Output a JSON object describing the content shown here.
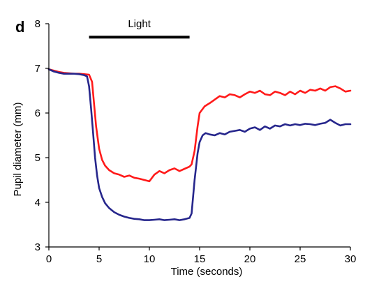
{
  "panel_label": "d",
  "chart_data": {
    "type": "line",
    "title": "",
    "xlabel": "Time (seconds)",
    "ylabel": "Pupil diameter (mm)",
    "xlim": [
      0,
      30
    ],
    "ylim": [
      3,
      8
    ],
    "xticks": [
      0,
      5,
      10,
      15,
      20,
      25,
      30
    ],
    "yticks": [
      3,
      4,
      5,
      6,
      7,
      8
    ],
    "grid": false,
    "annotations": [
      {
        "type": "bar",
        "label": "Light",
        "x_start": 4,
        "x_end": 14,
        "y": 7.7
      }
    ],
    "series": [
      {
        "name": "red",
        "color": "#ff1a1a",
        "x": [
          0,
          0.5,
          1,
          1.5,
          2,
          2.5,
          3,
          3.5,
          4,
          4.3,
          4.5,
          4.7,
          5,
          5.3,
          5.6,
          6,
          6.5,
          7,
          7.5,
          8,
          8.5,
          9,
          9.5,
          10,
          10.5,
          11,
          11.5,
          12,
          12.5,
          13,
          13.5,
          14,
          14.2,
          14.5,
          14.8,
          15,
          15.5,
          16,
          16.5,
          17,
          17.5,
          18,
          18.5,
          19,
          19.5,
          20,
          20.5,
          21,
          21.5,
          22,
          22.5,
          23,
          23.5,
          24,
          24.5,
          25,
          25.5,
          26,
          26.5,
          27,
          27.5,
          28,
          28.5,
          29,
          29.5,
          30
        ],
        "values": [
          6.98,
          6.95,
          6.92,
          6.9,
          6.89,
          6.88,
          6.88,
          6.87,
          6.86,
          6.7,
          6.2,
          5.7,
          5.2,
          4.95,
          4.82,
          4.72,
          4.65,
          4.62,
          4.57,
          4.6,
          4.55,
          4.53,
          4.5,
          4.47,
          4.62,
          4.7,
          4.65,
          4.72,
          4.76,
          4.7,
          4.75,
          4.8,
          4.85,
          5.15,
          5.7,
          6.0,
          6.15,
          6.22,
          6.3,
          6.38,
          6.35,
          6.42,
          6.4,
          6.35,
          6.42,
          6.48,
          6.45,
          6.5,
          6.42,
          6.4,
          6.48,
          6.45,
          6.4,
          6.48,
          6.42,
          6.5,
          6.45,
          6.52,
          6.5,
          6.55,
          6.5,
          6.58,
          6.6,
          6.55,
          6.48,
          6.5
        ]
      },
      {
        "name": "blue",
        "color": "#26268c",
        "x": [
          0,
          0.5,
          1,
          1.5,
          2,
          2.5,
          3,
          3.5,
          3.8,
          4,
          4.2,
          4.4,
          4.6,
          4.8,
          5,
          5.3,
          5.6,
          6,
          6.5,
          7,
          7.5,
          8,
          8.5,
          9,
          9.5,
          10,
          10.5,
          11,
          11.5,
          12,
          12.5,
          13,
          13.5,
          14,
          14.2,
          14.5,
          14.8,
          15,
          15.3,
          15.6,
          16,
          16.5,
          17,
          17.5,
          18,
          18.5,
          19,
          19.5,
          20,
          20.5,
          21,
          21.5,
          22,
          22.5,
          23,
          23.5,
          24,
          24.5,
          25,
          25.5,
          26,
          26.5,
          27,
          27.5,
          28,
          28.5,
          29,
          29.5,
          30
        ],
        "values": [
          6.98,
          6.93,
          6.9,
          6.88,
          6.88,
          6.88,
          6.87,
          6.85,
          6.82,
          6.6,
          6.1,
          5.55,
          5.0,
          4.6,
          4.32,
          4.12,
          3.98,
          3.87,
          3.78,
          3.72,
          3.68,
          3.65,
          3.63,
          3.62,
          3.6,
          3.6,
          3.61,
          3.62,
          3.6,
          3.61,
          3.62,
          3.6,
          3.62,
          3.65,
          3.75,
          4.5,
          5.1,
          5.35,
          5.5,
          5.55,
          5.52,
          5.5,
          5.55,
          5.52,
          5.58,
          5.6,
          5.62,
          5.58,
          5.65,
          5.68,
          5.62,
          5.7,
          5.65,
          5.72,
          5.7,
          5.75,
          5.72,
          5.75,
          5.73,
          5.76,
          5.75,
          5.73,
          5.76,
          5.78,
          5.85,
          5.78,
          5.72,
          5.75,
          5.75
        ]
      }
    ]
  }
}
